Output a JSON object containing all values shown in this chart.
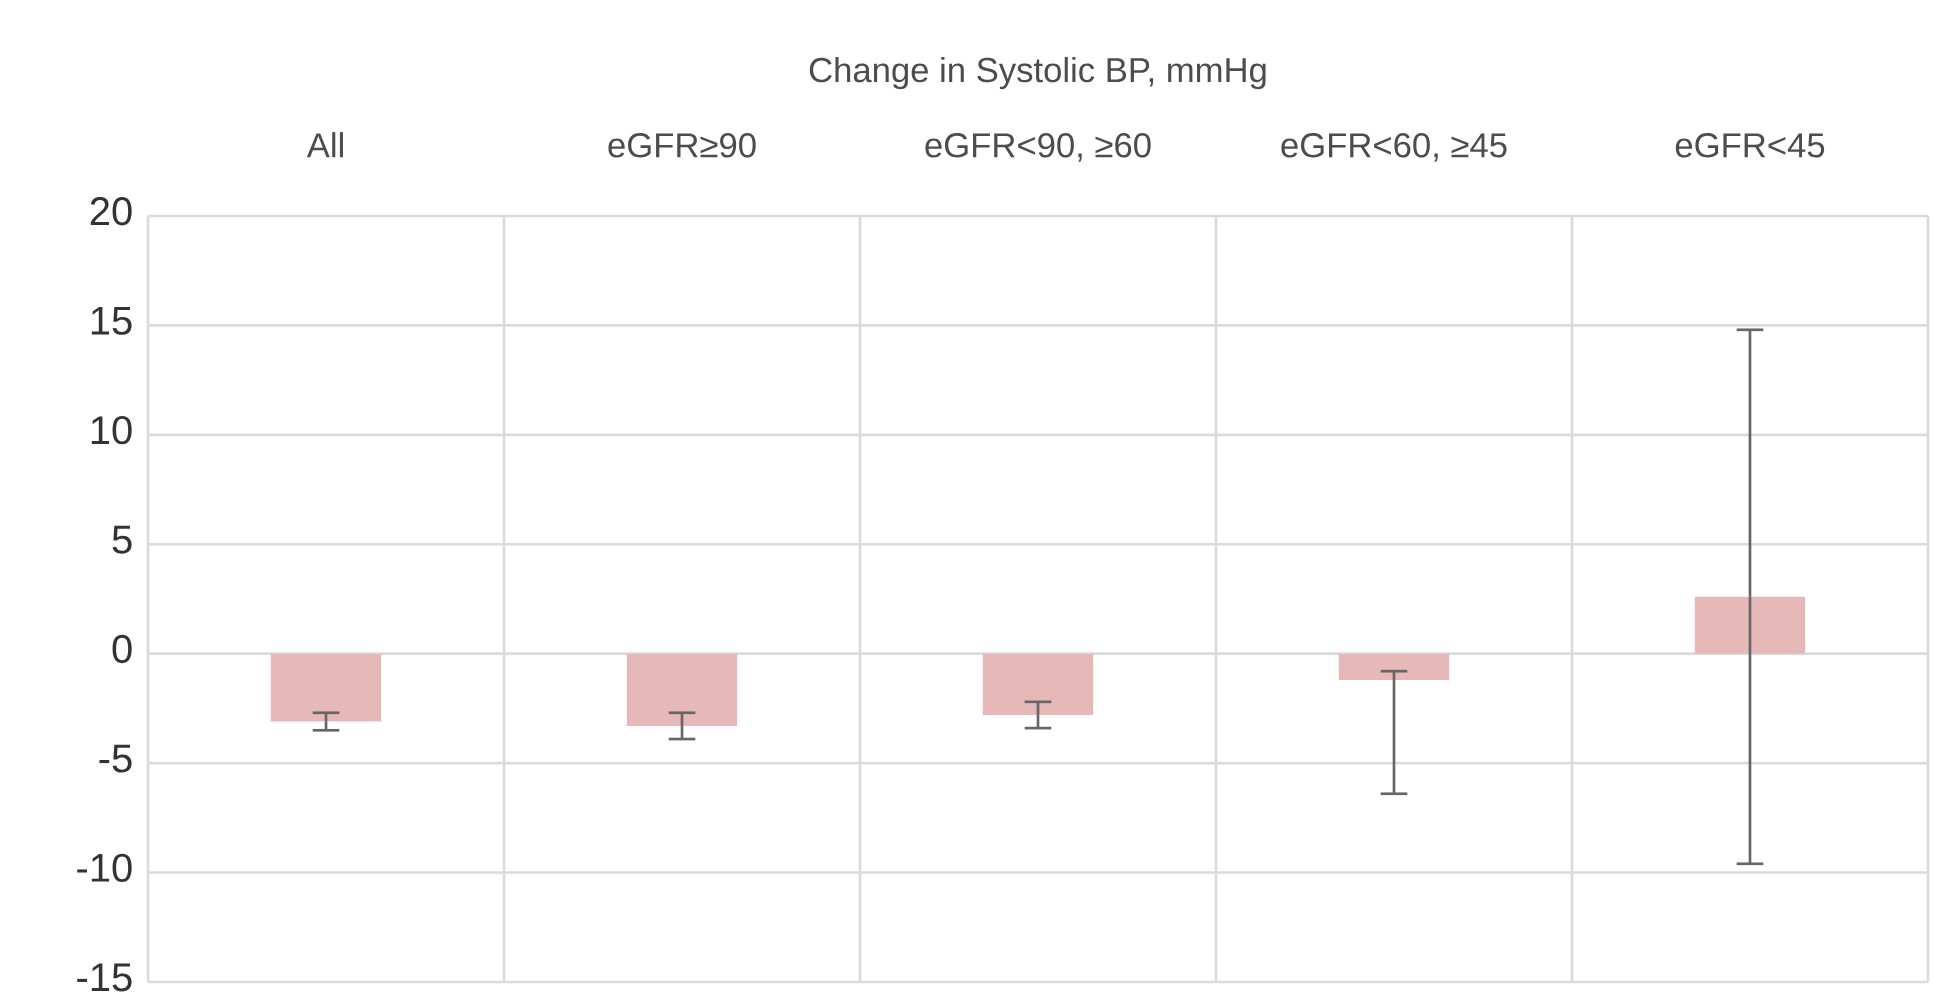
{
  "chart_data": {
    "type": "bar",
    "title": "Change in Systolic BP, mmHg",
    "categories": [
      "All",
      "eGFR≥90",
      "eGFR<90, ≥60",
      "eGFR<60, ≥45",
      "eGFR<45"
    ],
    "values": [
      -3.1,
      -3.3,
      -2.8,
      -1.2,
      2.6
    ],
    "errors": [
      [
        -3.5,
        -2.7
      ],
      [
        -3.9,
        -2.7
      ],
      [
        -3.4,
        -2.2
      ],
      [
        -6.4,
        -0.8
      ],
      [
        -9.6,
        14.8
      ]
    ],
    "color": "#e6b8b7",
    "ylim": [
      -15,
      20
    ],
    "yticks": [
      -15,
      -10,
      -5,
      0,
      5,
      10,
      15,
      20
    ],
    "grid": true
  }
}
